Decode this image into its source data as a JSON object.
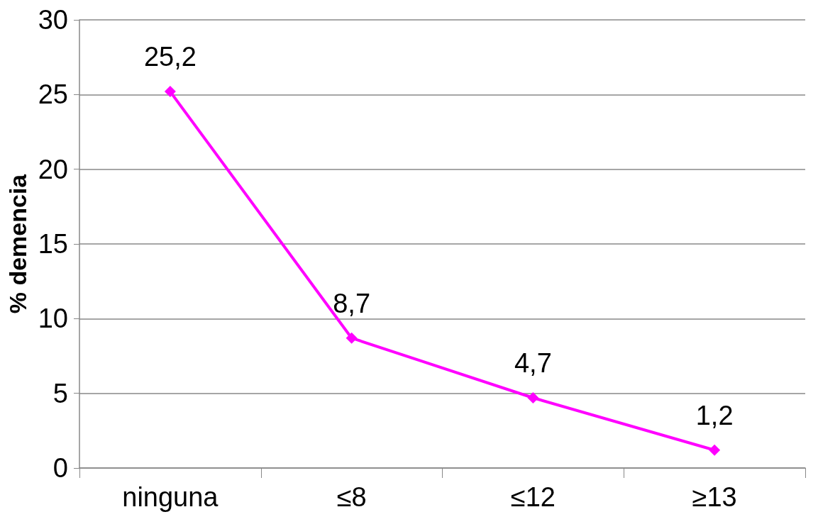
{
  "chart_data": {
    "type": "line",
    "ylabel": "% demencia",
    "categories": [
      "ninguna",
      "≤8",
      "≤12",
      "≥13"
    ],
    "series": [
      {
        "color": "#ff00ff",
        "values": [
          25.2,
          8.7,
          4.7,
          1.2
        ],
        "value_labels": [
          "25,2",
          "8,7",
          "4,7",
          "1,2"
        ]
      }
    ],
    "ylim": [
      0,
      30
    ],
    "yticks": [
      0,
      5,
      10,
      15,
      20,
      25,
      30
    ],
    "grid": "y",
    "marker": "diamond",
    "line_style": "solid"
  }
}
